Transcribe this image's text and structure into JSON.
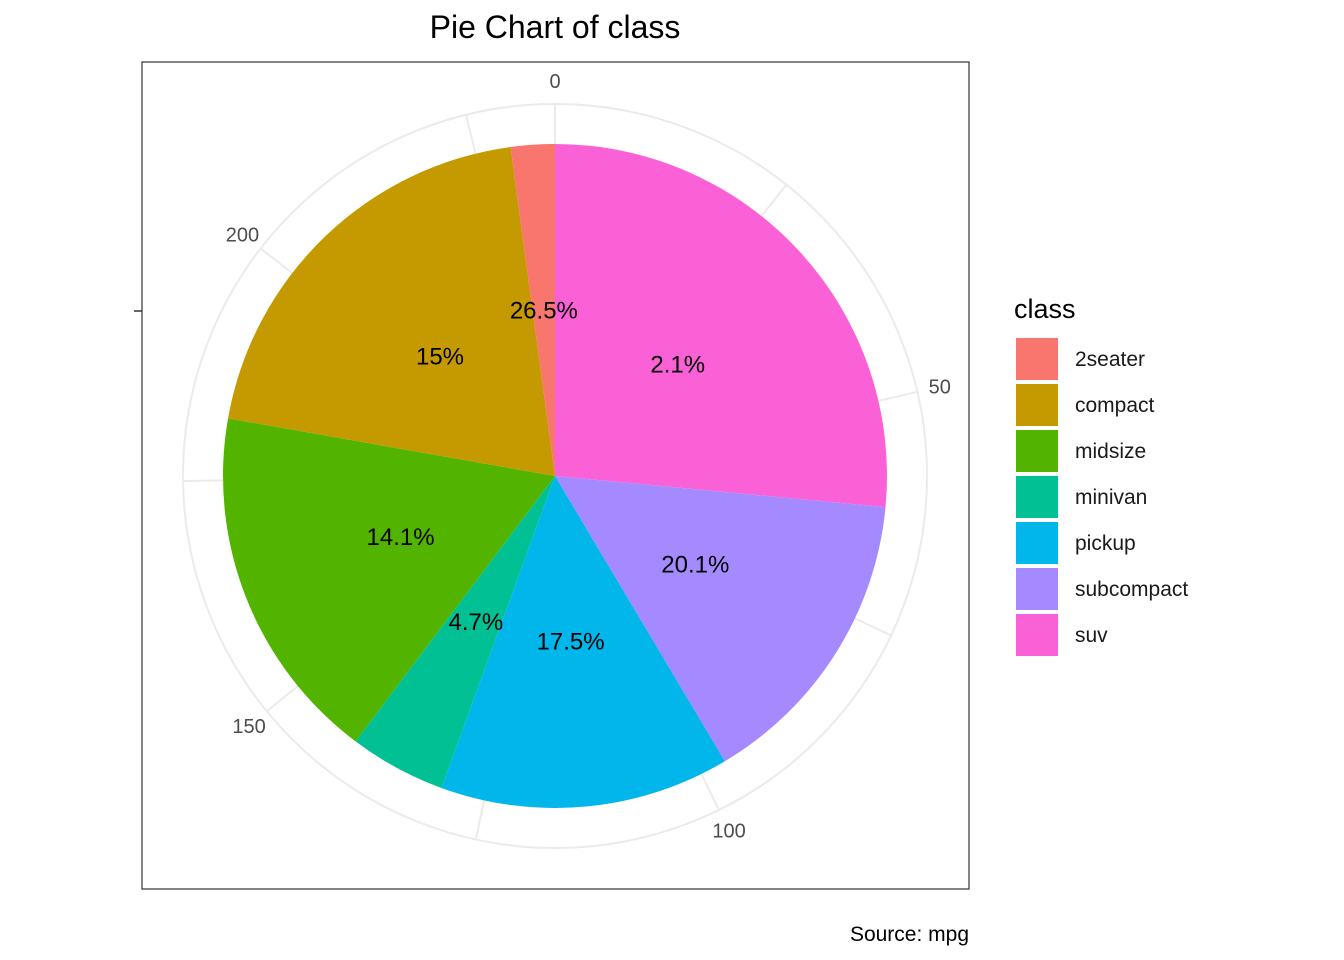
{
  "chart_data": {
    "type": "pie",
    "title": "Pie Chart of class",
    "caption": "Source: mpg",
    "legend_title": "class",
    "legend_position": "right",
    "categories": [
      "2seater",
      "compact",
      "midsize",
      "minivan",
      "pickup",
      "subcompact",
      "suv"
    ],
    "values": [
      5,
      47,
      41,
      11,
      33,
      35,
      62
    ],
    "percent_labels": [
      "2.1%",
      "20.1%",
      "17.5%",
      "4.7%",
      "14.1%",
      "15%",
      "26.5%"
    ],
    "colors": [
      "#F8766D",
      "#C49A00",
      "#53B400",
      "#00C094",
      "#00B6EB",
      "#A58AFF",
      "#FB61D7"
    ],
    "radial_axis_ticks": [
      "0",
      "50",
      "100",
      "150",
      "200"
    ],
    "radial_axis_tick_values": [
      0,
      50,
      100,
      150,
      200
    ],
    "total": 234,
    "grid": true
  }
}
